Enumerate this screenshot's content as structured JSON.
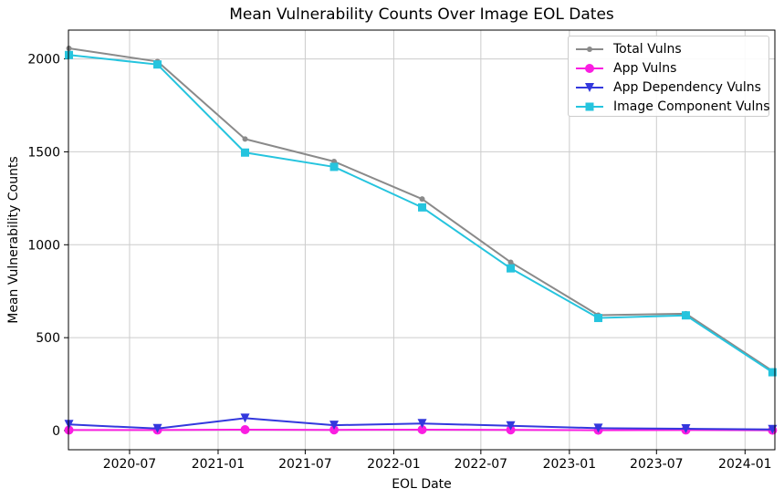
{
  "chart_data": {
    "type": "line",
    "title": "Mean Vulnerability Counts Over Image EOL Dates",
    "xlabel": "EOL Date",
    "ylabel": "Mean Vulnerability Counts",
    "grid": true,
    "legend_position": "top-right",
    "x": [
      "2020-02-26",
      "2020-08-28",
      "2021-02-26",
      "2021-08-30",
      "2022-03-01",
      "2022-09-01",
      "2023-03-02",
      "2023-08-31",
      "2024-02-27"
    ],
    "series": [
      {
        "name": "Total Vulns",
        "color": "#8a8a8a",
        "marker": "circle",
        "marker_size": 6,
        "values": [
          2057,
          1986,
          1569,
          1448,
          1246,
          906,
          621,
          629,
          321
        ]
      },
      {
        "name": "App Vulns",
        "color": "#fa1ee1",
        "marker": "circle",
        "marker_size": 10,
        "values": [
          3,
          3,
          5,
          4,
          5,
          4,
          2,
          3,
          2
        ]
      },
      {
        "name": "App Dependency Vulns",
        "color": "#3338dd",
        "marker": "triangle-down",
        "marker_size": 10,
        "values": [
          33,
          11,
          67,
          29,
          38,
          26,
          13,
          10,
          6
        ]
      },
      {
        "name": "Image Component Vulns",
        "color": "#25c4de",
        "marker": "square",
        "marker_size": 9,
        "values": [
          2021,
          1970,
          1496,
          1419,
          1201,
          873,
          606,
          620,
          314
        ]
      }
    ],
    "x_tick_labels": [
      "2020-07",
      "2021-01",
      "2021-07",
      "2022-01",
      "2022-07",
      "2023-01",
      "2023-07",
      "2024-01"
    ],
    "y_tick_labels": [
      "0",
      "500",
      "1000",
      "1500",
      "2000"
    ],
    "y_ticks": [
      0,
      500,
      1000,
      1500,
      2000
    ],
    "xlim": [
      "2020-02-25",
      "2024-03-03"
    ],
    "ylim": [
      -103,
      2155
    ],
    "colors": {
      "grid": "#cccccc",
      "spine": "#000000",
      "text": "#000000",
      "background": "#ffffff"
    }
  }
}
